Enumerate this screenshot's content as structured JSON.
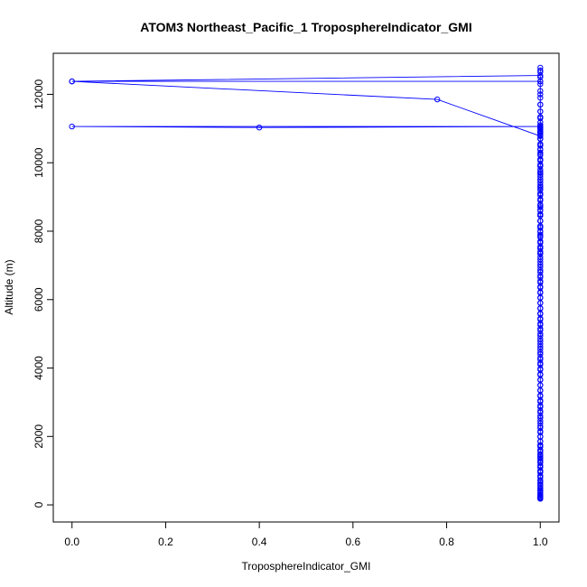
{
  "chart_data": {
    "type": "line",
    "title": "ATOM3 Northeast_Pacific_1 TroposphereIndicator_GMI",
    "xlabel": "TroposphereIndicator_GMI",
    "ylabel": "Altitude (m)",
    "xlim": [
      -0.04,
      1.04
    ],
    "ylim": [
      -500,
      13200
    ],
    "x_ticks": [
      0,
      0.2,
      0.4,
      0.6,
      0.8,
      1
    ],
    "x_tick_labels": [
      "0.0",
      "0.2",
      "0.4",
      "0.6",
      "0.8",
      "1.0"
    ],
    "y_ticks": [
      0,
      2000,
      4000,
      6000,
      8000,
      10000,
      12000
    ],
    "y_tick_labels": [
      "0",
      "2000",
      "4000",
      "6000",
      "8000",
      "10000",
      "12000"
    ],
    "grid": false,
    "series_color": "#0000ff",
    "series": [
      {
        "x": [
          1,
          1,
          1,
          1,
          1,
          1,
          1,
          1,
          1,
          1,
          1,
          1,
          1,
          1,
          1,
          1,
          1,
          1,
          1,
          1,
          1,
          1,
          1,
          1,
          1,
          1,
          1,
          1,
          1,
          1,
          1,
          1,
          1,
          1,
          1,
          1,
          1,
          1,
          1,
          1,
          1,
          1,
          1,
          1,
          1,
          1,
          1,
          1,
          1,
          1,
          1,
          1,
          1,
          1,
          1,
          1,
          1,
          1,
          1,
          1,
          1,
          1,
          1,
          1,
          1,
          1,
          1,
          1,
          1,
          1,
          1,
          1,
          1,
          1,
          1,
          1,
          1,
          1,
          0,
          1,
          1,
          1,
          1,
          1,
          1,
          1,
          1,
          1,
          1,
          1,
          1,
          1,
          1,
          1,
          1,
          1,
          1,
          1,
          1,
          1,
          1,
          1,
          1,
          1,
          1,
          1,
          1,
          1,
          1,
          1,
          1,
          1,
          1,
          0,
          0.78,
          1,
          1,
          1,
          1,
          1,
          0.4,
          0,
          1,
          1,
          1,
          1,
          1,
          1,
          1,
          1,
          1,
          1,
          1,
          1,
          1,
          1,
          1,
          1,
          1,
          1,
          1,
          1,
          1,
          1,
          1,
          1,
          1,
          1,
          1,
          1,
          1,
          1,
          1,
          1,
          1,
          1,
          1,
          1,
          1,
          1,
          1,
          1,
          1,
          1,
          1,
          1,
          1,
          1,
          1,
          1,
          1,
          1,
          1,
          1,
          1,
          1,
          1,
          1,
          1,
          1,
          1,
          1,
          1,
          1,
          1,
          1,
          1,
          1,
          1,
          1,
          1,
          1,
          1,
          1,
          1,
          1,
          1,
          1,
          1,
          1,
          1,
          1,
          1,
          1,
          1,
          1,
          1,
          1,
          1,
          1,
          1,
          1,
          1,
          1
        ],
        "y": [
          180,
          260,
          360,
          470,
          600,
          720,
          850,
          980,
          1100,
          1230,
          1360,
          1480,
          1600,
          1730,
          1860,
          1990,
          2120,
          2250,
          2380,
          2540,
          2700,
          2860,
          3020,
          3180,
          3340,
          3500,
          3660,
          3820,
          3980,
          4140,
          4300,
          4460,
          4620,
          4780,
          4940,
          5100,
          5260,
          5420,
          5580,
          5740,
          5900,
          6060,
          6220,
          6380,
          6540,
          6700,
          6860,
          7020,
          7180,
          7340,
          7500,
          7660,
          7820,
          7980,
          8140,
          8300,
          8460,
          8620,
          8780,
          8940,
          9100,
          9260,
          9420,
          9580,
          9740,
          9900,
          10060,
          10220,
          10380,
          10540,
          10700,
          10860,
          11020,
          11180,
          11340,
          11500,
          11700,
          12380,
          12380,
          12550,
          12700,
          12780,
          12650,
          12500,
          12300,
          12100,
          11900,
          11700,
          11500,
          11300,
          11100,
          10900,
          10700,
          10500,
          10300,
          10100,
          9900,
          9700,
          9500,
          9300,
          9100,
          8900,
          8700,
          8500,
          8300,
          8100,
          7900,
          7700,
          7500,
          7350,
          7500,
          12000,
          12380,
          12380,
          11850,
          10780,
          10900,
          11000,
          11100,
          11060,
          11030,
          11060,
          11060,
          11000,
          10950,
          10900,
          10850,
          10800,
          10700,
          10550,
          10400,
          10250,
          10100,
          9950,
          9800,
          9650,
          9500,
          9350,
          9200,
          9050,
          8900,
          8750,
          8600,
          8450,
          8300,
          8150,
          8000,
          7850,
          7700,
          7550,
          7400,
          7250,
          7100,
          6950,
          6800,
          6650,
          6500,
          6350,
          6200,
          6050,
          5900,
          5750,
          5600,
          5450,
          5300,
          5150,
          5000,
          4850,
          4700,
          4550,
          4400,
          4250,
          4100,
          3950,
          3800,
          3650,
          3500,
          3350,
          3200,
          3050,
          2900,
          2750,
          2600,
          2450,
          2300,
          2150,
          2000,
          1850,
          1700,
          1550,
          1400,
          1250,
          1100,
          950,
          800,
          650,
          500,
          400,
          300,
          250,
          200,
          180,
          220,
          300,
          420,
          560,
          700,
          850,
          1000,
          1150,
          1300,
          1450,
          1600,
          1750
        ]
      }
    ]
  }
}
